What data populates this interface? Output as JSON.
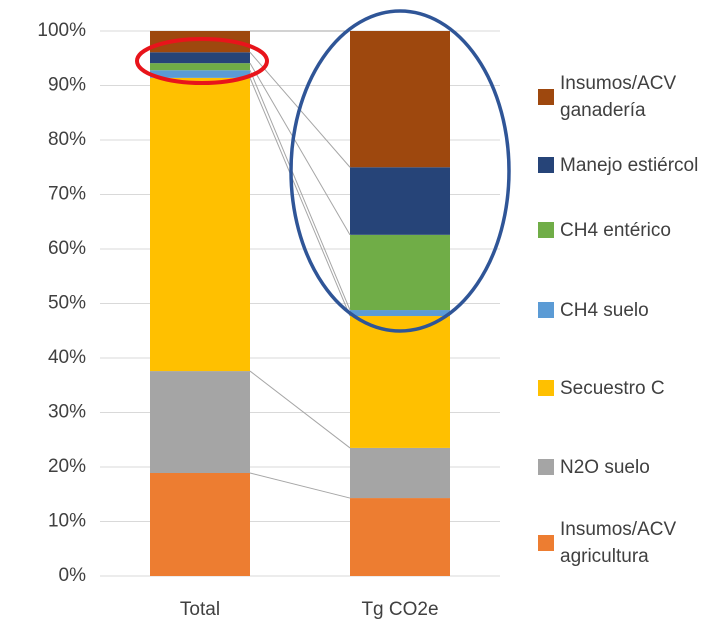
{
  "chart_data": {
    "type": "stacked_bar",
    "categories": [
      "Total",
      "Tg CO2e"
    ],
    "series": [
      {
        "name": "Insumos/ACV agricultura",
        "color": "#ed7d31",
        "values": [
          18.9,
          14.3
        ]
      },
      {
        "name": "N2O suelo",
        "color": "#a5a5a5",
        "values": [
          18.7,
          9.2
        ]
      },
      {
        "name": "Secuestro C",
        "color": "#ffc000",
        "values": [
          53.8,
          24.2
        ]
      },
      {
        "name": "CH4 suelo",
        "color": "#5b9bd5",
        "values": [
          1.4,
          1.1
        ]
      },
      {
        "name": "CH4 entérico",
        "color": "#70ad47",
        "values": [
          1.3,
          13.8
        ]
      },
      {
        "name": "Manejo estiércol",
        "color": "#264478",
        "values": [
          2.0,
          12.4
        ]
      },
      {
        "name": "Insumos/ACV ganadería",
        "color": "#9e480e",
        "values": [
          3.9,
          25.0
        ]
      }
    ],
    "ylim": [
      0,
      100
    ],
    "yticks": [
      {
        "value": 0,
        "label": "0%"
      },
      {
        "value": 10,
        "label": "10%"
      },
      {
        "value": 20,
        "label": "20%"
      },
      {
        "value": 30,
        "label": "30%"
      },
      {
        "value": 40,
        "label": "40%"
      },
      {
        "value": 50,
        "label": "50%"
      },
      {
        "value": 60,
        "label": "60%"
      },
      {
        "value": 70,
        "label": "70%"
      },
      {
        "value": 80,
        "label": "80%"
      },
      {
        "value": 90,
        "label": "90%"
      },
      {
        "value": 100,
        "label": "100%"
      }
    ],
    "grid": true
  }
}
